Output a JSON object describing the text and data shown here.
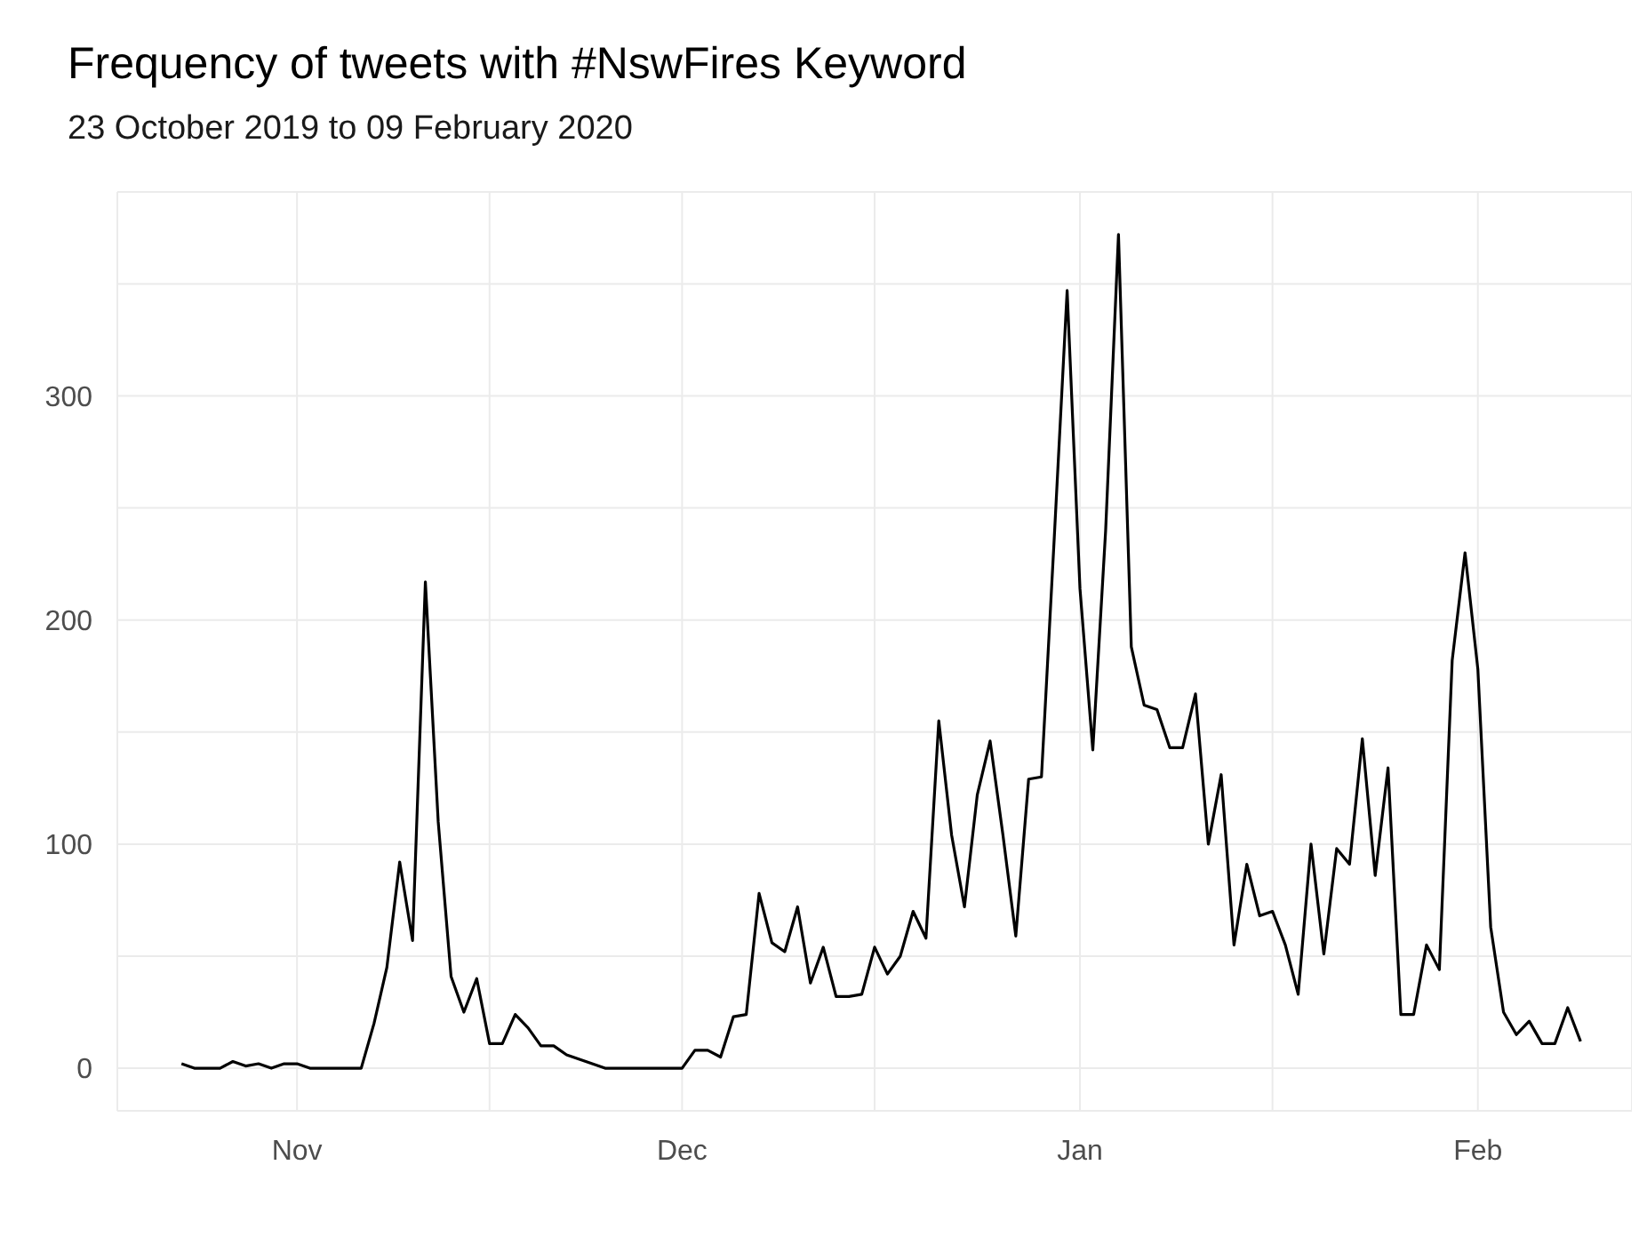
{
  "chart_data": {
    "type": "line",
    "title": "Frequency of tweets with #NswFires Keyword",
    "subtitle": "23 October 2019 to 09 February 2020",
    "x": [
      "2019-10-23",
      "2019-10-24",
      "2019-10-25",
      "2019-10-26",
      "2019-10-27",
      "2019-10-28",
      "2019-10-29",
      "2019-10-30",
      "2019-10-31",
      "2019-11-01",
      "2019-11-02",
      "2019-11-03",
      "2019-11-04",
      "2019-11-05",
      "2019-11-06",
      "2019-11-07",
      "2019-11-08",
      "2019-11-09",
      "2019-11-10",
      "2019-11-11",
      "2019-11-12",
      "2019-11-13",
      "2019-11-14",
      "2019-11-15",
      "2019-11-16",
      "2019-11-17",
      "2019-11-18",
      "2019-11-19",
      "2019-11-20",
      "2019-11-21",
      "2019-11-22",
      "2019-11-23",
      "2019-11-24",
      "2019-11-25",
      "2019-11-26",
      "2019-11-27",
      "2019-11-28",
      "2019-11-29",
      "2019-11-30",
      "2019-12-01",
      "2019-12-02",
      "2019-12-03",
      "2019-12-04",
      "2019-12-05",
      "2019-12-06",
      "2019-12-07",
      "2019-12-08",
      "2019-12-09",
      "2019-12-10",
      "2019-12-11",
      "2019-12-12",
      "2019-12-13",
      "2019-12-14",
      "2019-12-15",
      "2019-12-16",
      "2019-12-17",
      "2019-12-18",
      "2019-12-19",
      "2019-12-20",
      "2019-12-21",
      "2019-12-22",
      "2019-12-23",
      "2019-12-24",
      "2019-12-25",
      "2019-12-26",
      "2019-12-27",
      "2019-12-28",
      "2019-12-29",
      "2019-12-30",
      "2019-12-31",
      "2020-01-01",
      "2020-01-02",
      "2020-01-03",
      "2020-01-04",
      "2020-01-05",
      "2020-01-06",
      "2020-01-07",
      "2020-01-08",
      "2020-01-09",
      "2020-01-10",
      "2020-01-11",
      "2020-01-12",
      "2020-01-13",
      "2020-01-14",
      "2020-01-15",
      "2020-01-16",
      "2020-01-17",
      "2020-01-18",
      "2020-01-19",
      "2020-01-20",
      "2020-01-21",
      "2020-01-22",
      "2020-01-23",
      "2020-01-24",
      "2020-01-25",
      "2020-01-26",
      "2020-01-27",
      "2020-01-28",
      "2020-01-29",
      "2020-01-30",
      "2020-01-31",
      "2020-02-01",
      "2020-02-02",
      "2020-02-03",
      "2020-02-04",
      "2020-02-05",
      "2020-02-06",
      "2020-02-07",
      "2020-02-08",
      "2020-02-09"
    ],
    "series": [
      {
        "color": "#000000",
        "values": [
          2,
          0,
          0,
          0,
          3,
          1,
          2,
          0,
          2,
          2,
          0,
          0,
          0,
          0,
          0,
          20,
          45,
          92,
          57,
          217,
          110,
          41,
          25,
          40,
          11,
          11,
          24,
          18,
          10,
          10,
          6,
          4,
          2,
          0,
          0,
          0,
          0,
          0,
          0,
          0,
          8,
          8,
          5,
          23,
          24,
          78,
          56,
          52,
          72,
          38,
          54,
          32,
          32,
          33,
          54,
          42,
          50,
          70,
          58,
          155,
          104,
          72,
          122,
          146,
          104,
          59,
          129,
          130,
          237,
          347,
          214,
          142,
          240,
          372,
          188,
          162,
          160,
          143,
          143,
          167,
          100,
          131,
          55,
          91,
          68,
          70,
          55,
          33,
          100,
          51,
          98,
          91,
          147,
          86,
          134,
          24,
          24,
          55,
          44,
          182,
          230,
          178,
          63,
          25,
          15,
          21,
          11,
          11,
          27,
          12
        ]
      }
    ],
    "xlim": [
      "2019-10-18",
      "2020-02-13"
    ],
    "xticks": [
      {
        "value": "2019-11-01",
        "label": "Nov"
      },
      {
        "value": "2019-11-16",
        "label": null
      },
      {
        "value": "2019-12-01",
        "label": "Dec"
      },
      {
        "value": "2019-12-16",
        "label": null
      },
      {
        "value": "2020-01-01",
        "label": "Jan"
      },
      {
        "value": "2020-01-16",
        "label": null
      },
      {
        "value": "2020-02-01",
        "label": "Feb"
      }
    ],
    "ylim": [
      -19,
      391
    ],
    "yticks": [
      0,
      {
        "value": 50,
        "label": null
      },
      100,
      {
        "value": 150,
        "label": null
      },
      200,
      {
        "value": 250,
        "label": null
      },
      300,
      {
        "value": 350,
        "label": null
      }
    ],
    "grid": true,
    "marker": "none",
    "line_style": "solid",
    "legend": false
  }
}
